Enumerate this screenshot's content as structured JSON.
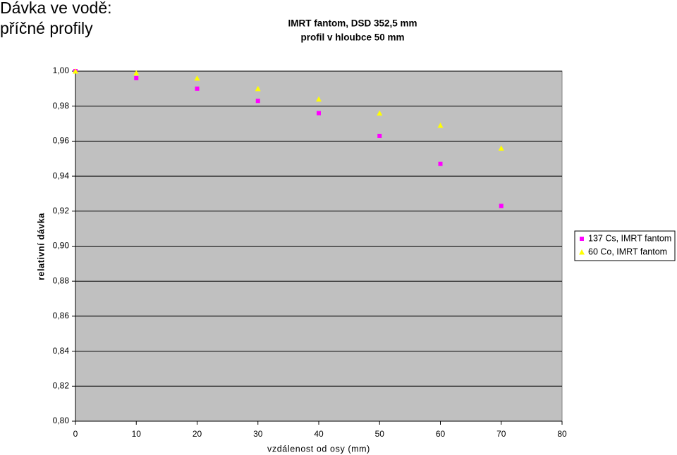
{
  "heading": [
    "Dávka ve vodě:",
    "příčné profily"
  ],
  "chart_data": {
    "type": "scatter",
    "title": "IMRT fantom, DSD 352,5 mm",
    "subtitle": "profil v hloubce 50 mm",
    "x_label": "vzdálenost od osy (mm)",
    "y_label": "relativní dávka",
    "x": [
      0,
      10,
      20,
      30,
      40,
      50,
      60,
      70
    ],
    "series": [
      {
        "name": "137 Cs, IMRT fantom",
        "color": "#ff00ff",
        "marker": "square",
        "values": [
          1.0,
          0.996,
          0.99,
          0.983,
          0.976,
          0.963,
          0.947,
          0.923
        ]
      },
      {
        "name": "60 Co, IMRT fantom",
        "color": "#ffff00",
        "marker": "triangle",
        "values": [
          1.0,
          0.999,
          0.996,
          0.99,
          0.984,
          0.976,
          0.969,
          0.956
        ]
      }
    ],
    "xlim": [
      0,
      80
    ],
    "xticks": [
      0,
      10,
      20,
      30,
      40,
      50,
      60,
      70,
      80
    ],
    "ylim": [
      0.8,
      1.0
    ],
    "yticks": [
      {
        "value": 0.8,
        "label": "0,80"
      },
      {
        "value": 0.82,
        "label": "0,82"
      },
      {
        "value": 0.84,
        "label": "0,84"
      },
      {
        "value": 0.86,
        "label": "0,86"
      },
      {
        "value": 0.88,
        "label": "0,88"
      },
      {
        "value": 0.9,
        "label": "0,90"
      },
      {
        "value": 0.92,
        "label": "0,92"
      },
      {
        "value": 0.94,
        "label": "0,94"
      },
      {
        "value": 0.96,
        "label": "0,96"
      },
      {
        "value": 0.98,
        "label": "0,98"
      },
      {
        "value": 1.0,
        "label": "1,00"
      }
    ],
    "grid": true,
    "plot_background": "#c0c0c0",
    "legend": "right"
  }
}
